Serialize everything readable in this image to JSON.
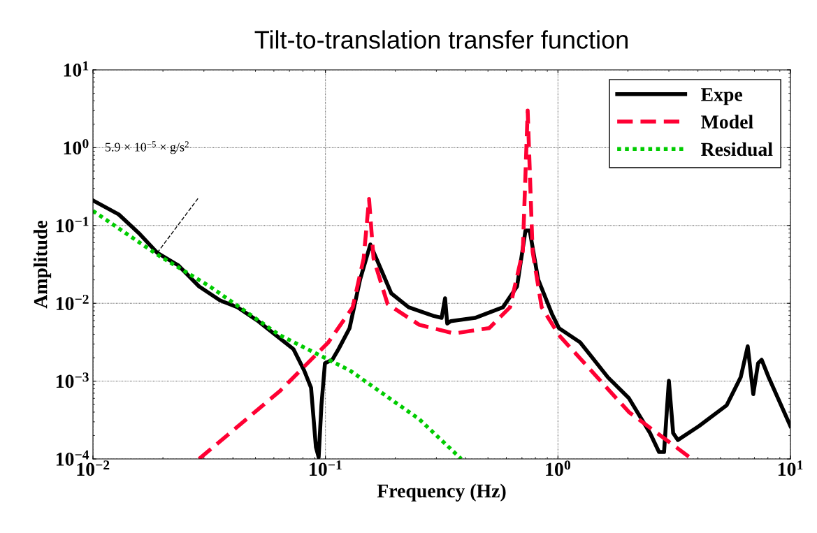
{
  "chart_data": {
    "type": "line",
    "title": "Tilt-to-translation transfer function",
    "xlabel": "Frequency (Hz)",
    "ylabel": "Amplitude",
    "log": "xy",
    "grid": true,
    "legend": "top right",
    "xlim": [
      0.01,
      10
    ],
    "ylim": [
      0.0001,
      10
    ],
    "xticks": [
      {
        "value": 0.01,
        "label": "10$^{−2}$"
      },
      {
        "value": 0.1,
        "label": "10$^{−1}$"
      },
      {
        "value": 1,
        "label": "10$^{0}$"
      },
      {
        "value": 10,
        "label": "10$^{1}$"
      }
    ],
    "yticks": [
      {
        "value": 0.0001,
        "label": "10$^{−4}$"
      },
      {
        "value": 0.001,
        "label": "10$^{−3}$"
      },
      {
        "value": 0.01,
        "label": "10$^{−2}$"
      },
      {
        "value": 0.1,
        "label": "10$^{−1}$"
      },
      {
        "value": 1,
        "label": "10$^{0}$"
      },
      {
        "value": 10,
        "label": "10$^{1}$"
      }
    ],
    "annotations": [
      "5.9 × 10$^{−5}$ × g/s$^{2}$"
    ],
    "series": [
      {
        "name": "Expe",
        "color": "#000000",
        "line_style": "solid",
        "x": [
          0.01,
          0.0129,
          0.0159,
          0.0189,
          0.0233,
          0.0286,
          0.0352,
          0.0419,
          0.0515,
          0.0613,
          0.0729,
          0.0809,
          0.0867,
          0.091,
          0.0935,
          0.0961,
          0.0995,
          0.107,
          0.114,
          0.127,
          0.141,
          0.156,
          0.173,
          0.192,
          0.228,
          0.291,
          0.316,
          0.327,
          0.334,
          0.346,
          0.44,
          0.58,
          0.667,
          0.725,
          0.756,
          0.822,
          0.944,
          1.01,
          1.245,
          1.64,
          2.02,
          2.49,
          2.72,
          2.86,
          3.0,
          3.13,
          3.28,
          4.04,
          5.32,
          6.11,
          6.55,
          6.92,
          7.26,
          7.52,
          8.06,
          10
        ],
        "values": [
          0.21,
          0.139,
          0.0776,
          0.0445,
          0.0307,
          0.0165,
          0.0109,
          0.00887,
          0.00586,
          0.00388,
          0.00257,
          0.00138,
          0.000824,
          0.000142,
          0.000105,
          0.00049,
          0.0017,
          0.00188,
          0.0026,
          0.0048,
          0.0203,
          0.057,
          0.0277,
          0.0134,
          0.0089,
          0.0069,
          0.0065,
          0.0116,
          0.0055,
          0.0059,
          0.0065,
          0.0089,
          0.0165,
          0.086,
          0.086,
          0.0203,
          0.0072,
          0.0048,
          0.00316,
          0.00112,
          0.000603,
          0.000215,
          0.000123,
          0.000123,
          0.00101,
          0.000215,
          0.000175,
          0.000264,
          0.00049,
          0.00112,
          0.0028,
          0.00068,
          0.0017,
          0.00188,
          0.00112,
          0.000264
        ]
      },
      {
        "name": "Model",
        "color": "#ff0033",
        "line_style": "dashed",
        "x": [
          0.0286,
          0.0635,
          0.103,
          0.131,
          0.146,
          0.154,
          0.161,
          0.185,
          0.253,
          0.358,
          0.506,
          0.622,
          0.706,
          0.741,
          0.778,
          0.851,
          1.01,
          2.02,
          3.77
        ],
        "values": [
          0.0001,
          0.00074,
          0.00316,
          0.0089,
          0.0377,
          0.219,
          0.0377,
          0.0098,
          0.0053,
          0.0041,
          0.0048,
          0.0089,
          0.0464,
          3.0,
          0.0464,
          0.0089,
          0.0039,
          0.0004,
          0.0001
        ]
      },
      {
        "name": "Residual",
        "color": "#00cc00",
        "line_style": "dotted",
        "x": [
          0.01,
          0.0189,
          0.0318,
          0.0635,
          0.127,
          0.253,
          0.384
        ],
        "values": [
          0.154,
          0.0423,
          0.0165,
          0.0039,
          0.00138,
          0.000325,
          0.0001
        ]
      },
      {
        "color": "#000000",
        "line_style": "dashed",
        "x": [
          0.0189,
          0.0286
        ],
        "values": [
          0.0445,
          0.232
        ]
      }
    ]
  }
}
